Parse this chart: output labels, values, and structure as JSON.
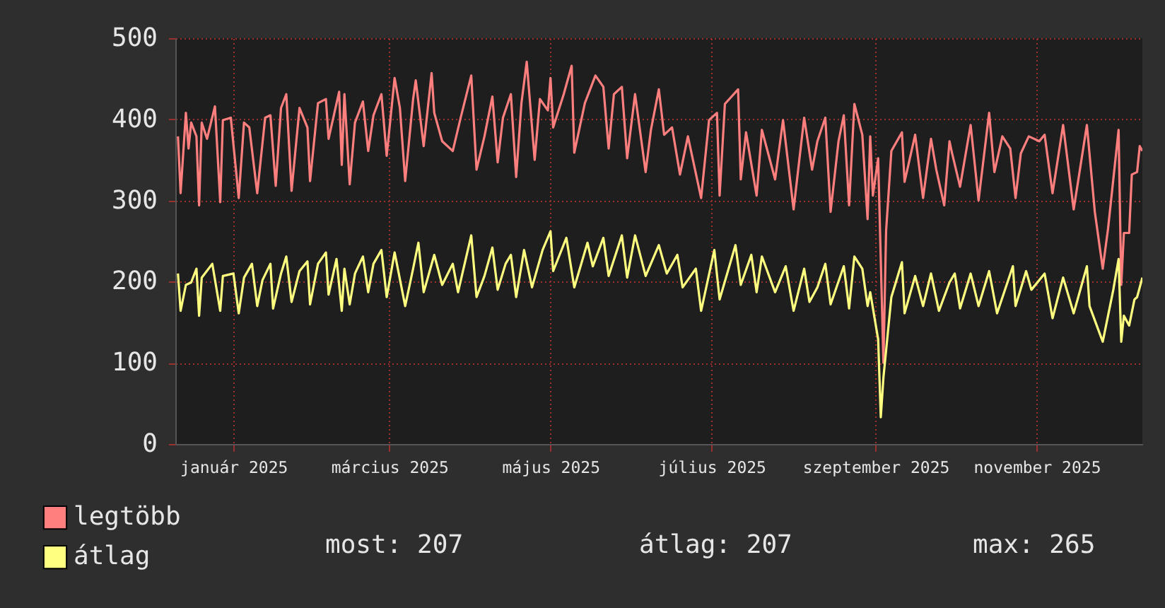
{
  "chart_data": {
    "type": "line",
    "xlim": [
      "2024-12-10",
      "2025-12-11"
    ],
    "xticks": [
      {
        "value": "2025-01-01",
        "label": "január 2025"
      },
      {
        "value": "2025-03-01",
        "label": "március 2025"
      },
      {
        "value": "2025-05-01",
        "label": "május 2025"
      },
      {
        "value": "2025-07-01",
        "label": "július 2025"
      },
      {
        "value": "2025-09-01",
        "label": "szeptember 2025"
      },
      {
        "value": "2025-11-01",
        "label": "november 2025"
      }
    ],
    "ylim": [
      0,
      500
    ],
    "yticks": [
      0,
      100,
      200,
      300,
      400,
      500
    ],
    "grid": true,
    "legend": "bottom",
    "marker": "none",
    "line_style": "solid",
    "annotations": [
      "most: 207",
      "átlag: 207",
      "max: 265"
    ],
    "series": [
      {
        "name": "legtöbb",
        "color": "#ff7f7f",
        "x": [
          "2024-12-11",
          "2024-12-12",
          "2024-12-14",
          "2024-12-15",
          "2024-12-16",
          "2024-12-18",
          "2024-12-19",
          "2024-12-20",
          "2024-12-22",
          "2024-12-25",
          "2024-12-27",
          "2024-12-28",
          "2024-12-31",
          "2025-01-03",
          "2025-01-05",
          "2025-01-07",
          "2025-01-10",
          "2025-01-13",
          "2025-01-15",
          "2025-01-17",
          "2025-01-19",
          "2025-01-21",
          "2025-01-23",
          "2025-01-26",
          "2025-01-29",
          "2025-01-30",
          "2025-02-02",
          "2025-02-05",
          "2025-02-06",
          "2025-02-10",
          "2025-02-11",
          "2025-02-12",
          "2025-02-14",
          "2025-02-16",
          "2025-02-19",
          "2025-02-21",
          "2025-02-23",
          "2025-02-26",
          "2025-02-28",
          "2025-03-03",
          "2025-03-05",
          "2025-03-07",
          "2025-03-10",
          "2025-03-11",
          "2025-03-14",
          "2025-03-17",
          "2025-03-18",
          "2025-03-21",
          "2025-03-25",
          "2025-03-28",
          "2025-04-01",
          "2025-04-03",
          "2025-04-06",
          "2025-04-09",
          "2025-04-11",
          "2025-04-13",
          "2025-04-16",
          "2025-04-18",
          "2025-04-20",
          "2025-04-22",
          "2025-04-25",
          "2025-04-27",
          "2025-04-30",
          "2025-05-01",
          "2025-05-02",
          "2025-05-06",
          "2025-05-09",
          "2025-05-10",
          "2025-05-14",
          "2025-05-18",
          "2025-05-21",
          "2025-05-23",
          "2025-05-25",
          "2025-05-28",
          "2025-05-30",
          "2025-06-02",
          "2025-06-06",
          "2025-06-08",
          "2025-06-11",
          "2025-06-13",
          "2025-06-16",
          "2025-06-19",
          "2025-06-22",
          "2025-06-27",
          "2025-06-30",
          "2025-07-03",
          "2025-07-04",
          "2025-07-06",
          "2025-07-11",
          "2025-07-12",
          "2025-07-14",
          "2025-07-18",
          "2025-07-20",
          "2025-07-25",
          "2025-07-28",
          "2025-08-01",
          "2025-08-05",
          "2025-08-08",
          "2025-08-10",
          "2025-08-13",
          "2025-08-15",
          "2025-08-18",
          "2025-08-20",
          "2025-08-22",
          "2025-08-24",
          "2025-08-27",
          "2025-08-29",
          "2025-08-30",
          "2025-08-31",
          "2025-09-02",
          "2025-09-04",
          "2025-09-05",
          "2025-09-07",
          "2025-09-11",
          "2025-09-12",
          "2025-09-16",
          "2025-09-19",
          "2025-09-22",
          "2025-09-24",
          "2025-09-27",
          "2025-09-29",
          "2025-09-30",
          "2025-10-03",
          "2025-10-07",
          "2025-10-10",
          "2025-10-14",
          "2025-10-16",
          "2025-10-19",
          "2025-10-22",
          "2025-10-24",
          "2025-10-26",
          "2025-10-29",
          "2025-11-02",
          "2025-11-04",
          "2025-11-07",
          "2025-11-11",
          "2025-11-15",
          "2025-11-20",
          "2025-11-23",
          "2025-11-26",
          "2025-11-28",
          "2025-11-30",
          "2025-12-02",
          "2025-12-03",
          "2025-12-04",
          "2025-12-06",
          "2025-12-07",
          "2025-12-09",
          "2025-12-10",
          "2025-12-11"
        ],
        "values": [
          379,
          309,
          408,
          364,
          396,
          379,
          294,
          396,
          376,
          416,
          298,
          399,
          402,
          303,
          396,
          390,
          309,
          402,
          405,
          318,
          414,
          431,
          312,
          414,
          390,
          324,
          420,
          425,
          376,
          434,
          344,
          431,
          320,
          396,
          422,
          361,
          405,
          431,
          355,
          451,
          414,
          324,
          425,
          448,
          367,
          457,
          408,
          373,
          361,
          402,
          454,
          338,
          379,
          428,
          347,
          402,
          431,
          329,
          420,
          471,
          350,
          425,
          411,
          451,
          390,
          431,
          466,
          359,
          420,
          454,
          440,
          364,
          431,
          440,
          352,
          431,
          335,
          387,
          437,
          381,
          390,
          332,
          379,
          303,
          399,
          408,
          306,
          419,
          437,
          326,
          384,
          306,
          387,
          326,
          399,
          289,
          402,
          338,
          373,
          402,
          286,
          373,
          405,
          294,
          419,
          381,
          277,
          379,
          306,
          352,
          100,
          262,
          361,
          384,
          323,
          381,
          303,
          376,
          338,
          294,
          373,
          358,
          317,
          393,
          300,
          408,
          335,
          379,
          364,
          303,
          358,
          379,
          373,
          381,
          309,
          393,
          289,
          393,
          286,
          216,
          265,
          326,
          387,
          196,
          260,
          260,
          332,
          335,
          367,
          361
        ]
      },
      {
        "name": "átlag",
        "color": "#ffff80",
        "x": [
          "2024-12-11",
          "2024-12-12",
          "2024-12-14",
          "2024-12-16",
          "2024-12-18",
          "2024-12-19",
          "2024-12-20",
          "2024-12-24",
          "2024-12-27",
          "2024-12-28",
          "2025-01-01",
          "2025-01-03",
          "2025-01-05",
          "2025-01-08",
          "2025-01-10",
          "2025-01-12",
          "2025-01-15",
          "2025-01-16",
          "2025-01-19",
          "2025-01-21",
          "2025-01-23",
          "2025-01-26",
          "2025-01-29",
          "2025-01-30",
          "2025-02-02",
          "2025-02-05",
          "2025-02-06",
          "2025-02-09",
          "2025-02-11",
          "2025-02-12",
          "2025-02-14",
          "2025-02-16",
          "2025-02-19",
          "2025-02-21",
          "2025-02-23",
          "2025-02-26",
          "2025-02-28",
          "2025-03-03",
          "2025-03-07",
          "2025-03-10",
          "2025-03-12",
          "2025-03-14",
          "2025-03-18",
          "2025-03-21",
          "2025-03-25",
          "2025-03-27",
          "2025-04-01",
          "2025-04-03",
          "2025-04-06",
          "2025-04-09",
          "2025-04-11",
          "2025-04-14",
          "2025-04-16",
          "2025-04-18",
          "2025-04-21",
          "2025-04-24",
          "2025-04-28",
          "2025-05-01",
          "2025-05-02",
          "2025-05-07",
          "2025-05-10",
          "2025-05-15",
          "2025-05-17",
          "2025-05-21",
          "2025-05-23",
          "2025-05-28",
          "2025-05-30",
          "2025-06-02",
          "2025-06-06",
          "2025-06-11",
          "2025-06-14",
          "2025-06-18",
          "2025-06-20",
          "2025-06-25",
          "2025-06-27",
          "2025-07-02",
          "2025-07-04",
          "2025-07-10",
          "2025-07-12",
          "2025-07-16",
          "2025-07-18",
          "2025-07-20",
          "2025-07-25",
          "2025-07-29",
          "2025-08-01",
          "2025-08-05",
          "2025-08-07",
          "2025-08-10",
          "2025-08-13",
          "2025-08-15",
          "2025-08-20",
          "2025-08-22",
          "2025-08-24",
          "2025-08-27",
          "2025-08-29",
          "2025-08-30",
          "2025-09-02",
          "2025-09-03",
          "2025-09-04",
          "2025-09-07",
          "2025-09-11",
          "2025-09-12",
          "2025-09-16",
          "2025-09-19",
          "2025-09-22",
          "2025-09-25",
          "2025-09-29",
          "2025-10-01",
          "2025-10-03",
          "2025-10-07",
          "2025-10-10",
          "2025-10-14",
          "2025-10-17",
          "2025-10-23",
          "2025-10-24",
          "2025-10-28",
          "2025-10-30",
          "2025-11-04",
          "2025-11-07",
          "2025-11-11",
          "2025-11-15",
          "2025-11-20",
          "2025-11-21",
          "2025-11-26",
          "2025-11-28",
          "2025-11-30",
          "2025-12-02",
          "2025-12-03",
          "2025-12-04",
          "2025-12-06",
          "2025-12-08",
          "2025-12-09",
          "2025-12-11"
        ],
        "values": [
          210,
          164,
          196,
          199,
          216,
          158,
          205,
          222,
          164,
          207,
          210,
          161,
          205,
          222,
          170,
          202,
          222,
          167,
          210,
          231,
          175,
          213,
          225,
          172,
          222,
          236,
          184,
          228,
          164,
          216,
          172,
          210,
          231,
          187,
          222,
          239,
          181,
          236,
          170,
          216,
          248,
          187,
          233,
          196,
          222,
          187,
          257,
          181,
          207,
          242,
          190,
          222,
          233,
          181,
          239,
          193,
          239,
          262,
          213,
          254,
          193,
          248,
          219,
          254,
          207,
          257,
          205,
          257,
          207,
          245,
          210,
          233,
          193,
          216,
          164,
          239,
          178,
          245,
          196,
          233,
          187,
          231,
          187,
          219,
          164,
          216,
          175,
          193,
          222,
          172,
          219,
          167,
          231,
          216,
          170,
          187,
          129,
          33,
          82,
          181,
          224,
          161,
          207,
          170,
          210,
          164,
          199,
          210,
          167,
          210,
          170,
          213,
          161,
          219,
          170,
          213,
          190,
          210,
          155,
          205,
          161,
          219,
          170,
          126,
          158,
          190,
          228,
          126,
          158,
          146,
          178,
          181,
          205
        ]
      }
    ]
  }
}
